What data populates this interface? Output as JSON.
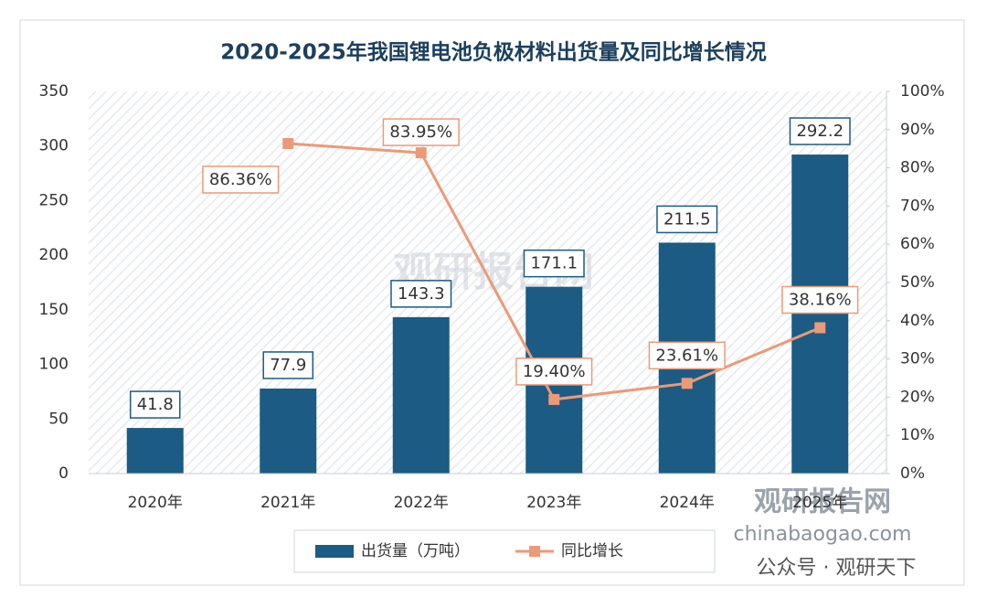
{
  "chart_data": {
    "type": "bar-line",
    "title": "2020-2025年我国锂电池负极材料出货量及同比增长情况",
    "categories": [
      "2020年",
      "2021年",
      "2022年",
      "2023年",
      "2024年",
      "2025年"
    ],
    "series": [
      {
        "name": "出货量（万吨）",
        "type": "bar",
        "color": "#1c5b83",
        "values": [
          41.8,
          77.9,
          143.3,
          171.1,
          211.5,
          292.2
        ]
      },
      {
        "name": "同比增长",
        "type": "line",
        "axis": "y2",
        "color": "#eb9a78",
        "values": [
          null,
          86.36,
          83.95,
          19.4,
          23.61,
          38.16
        ],
        "value_labels": [
          null,
          "86.36%",
          "83.95%",
          "19.40%",
          "23.61%",
          "38.16%"
        ]
      }
    ],
    "ylim": [
      0,
      350
    ],
    "yticks": [
      0,
      50,
      100,
      150,
      200,
      250,
      300,
      350
    ],
    "y2lim": [
      0,
      100
    ],
    "y2ticks": [
      {
        "value": 0,
        "label": "0%"
      },
      {
        "value": 10,
        "label": "10%"
      },
      {
        "value": 20,
        "label": "20%"
      },
      {
        "value": 30,
        "label": "30%"
      },
      {
        "value": 40,
        "label": "40%"
      },
      {
        "value": 50,
        "label": "50%"
      },
      {
        "value": 60,
        "label": "60%"
      },
      {
        "value": 70,
        "label": "70%"
      },
      {
        "value": 80,
        "label": "80%"
      },
      {
        "value": 90,
        "label": "90%"
      },
      {
        "value": 100,
        "label": "100%"
      }
    ],
    "legend": "bottom"
  },
  "watermark": {
    "brand": "观研报告网",
    "site": "chinabaogao.com",
    "account": "公众号 · 观研天下"
  }
}
